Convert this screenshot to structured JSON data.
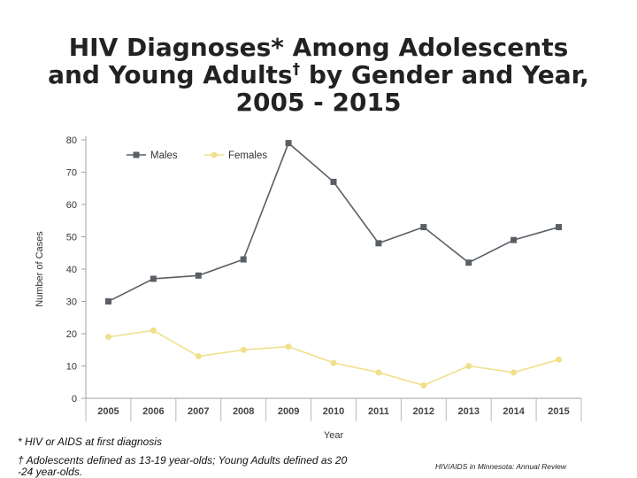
{
  "title": {
    "line1": "HIV Diagnoses* Among Adolescents",
    "line2_a": "and Young Adults",
    "line2_dagger": "†",
    "line2_b": " by Gender and Year,",
    "line3": "2005 - 2015"
  },
  "chart_data": {
    "type": "line",
    "title": "HIV Diagnoses* Among Adolescents and Young Adults† by Gender and Year, 2005 - 2015",
    "xlabel": "Year",
    "ylabel": "Number of Cases",
    "ylim": [
      0,
      80
    ],
    "yticks": [
      0,
      10,
      20,
      30,
      40,
      50,
      60,
      70,
      80
    ],
    "categories": [
      "2005",
      "2006",
      "2007",
      "2008",
      "2009",
      "2010",
      "2011",
      "2012",
      "2013",
      "2014",
      "2015"
    ],
    "series": [
      {
        "name": "Males",
        "color": "#5a5f66",
        "marker": "square",
        "values": [
          30,
          37,
          38,
          43,
          79,
          67,
          48,
          53,
          42,
          49,
          53
        ]
      },
      {
        "name": "Females",
        "color": "#f0e08c",
        "marker": "circle",
        "values": [
          19,
          21,
          13,
          15,
          16,
          11,
          8,
          4,
          10,
          8,
          12
        ]
      }
    ],
    "legend": "top-left",
    "grid": false
  },
  "footnotes": {
    "fn1": "* HIV or AIDS at first diagnosis",
    "fn2": "† Adolescents defined as 13-19 year-olds; Young Adults defined as 20 -24 year-olds."
  },
  "source": "HIV/AIDS in Minnesota: Annual Review"
}
